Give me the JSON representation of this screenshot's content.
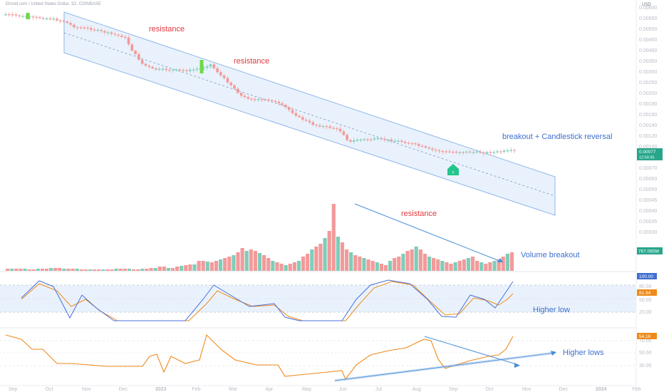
{
  "header": {
    "symbol_line": "Elrond.com / United States Dollar, 1D, COINBASE",
    "currency": "USD"
  },
  "annotations": {
    "resistance_1": "resistance",
    "resistance_2": "resistance",
    "breakout": "breakout + Candlestick reversal",
    "resistance_volume": "resistance",
    "volume_breakout": "Volume breakout",
    "higher_low": "Higher low",
    "higher_lows": "Higher lows"
  },
  "badges": {
    "price": "0.00077",
    "countdown": "12:59:35",
    "volume": "767.065M",
    "stoch_k": "100.00",
    "stoch_d": "81.94",
    "rsi": "54.16"
  },
  "marker": {
    "label": "s"
  },
  "colors": {
    "bull": "#7ecdb9",
    "bear": "#f29a9a",
    "bull_solid": "#6ed846",
    "channel": "#4a8fd8",
    "channel_fill": "#e9f2fc",
    "annotation_red": "#e0383e",
    "annotation_blue": "#3f6fcf",
    "rsi": "#ef8a1a",
    "stoch_d": "#ef8a1a",
    "stoch_k": "#4a6fdc"
  },
  "chart_data": {
    "type": "candlestick",
    "x_ticks": [
      "Sep",
      "Oct",
      "Nov",
      "Dec",
      "2023",
      "Feb",
      "Mar",
      "Apr",
      "May",
      "Jun",
      "Jul",
      "Aug",
      "Sep",
      "Oct",
      "Nov",
      "Dec",
      "2024",
      "Feb"
    ],
    "price_ticks": [
      "0.00600",
      "0.00550",
      "0.00500",
      "0.00450",
      "0.00400",
      "0.00350",
      "0.00300",
      "0.00250",
      "0.00200",
      "0.00180",
      "0.00160",
      "0.00140",
      "0.00120",
      "0.00100",
      "0.00080",
      "0.00070",
      "0.00060",
      "0.00050",
      "0.00045",
      "0.00040",
      "0.00035",
      "0.00030"
    ],
    "stoch_ticks": [
      "80.00",
      "50.00",
      "20.00"
    ],
    "rsi_ticks": [
      "70.00",
      "50.00",
      "30.00"
    ],
    "last_price": 0.00077,
    "last_volume": "767.065M",
    "stoch_k_last": 100.0,
    "stoch_d_last": 81.94,
    "rsi_last": 54.16
  }
}
